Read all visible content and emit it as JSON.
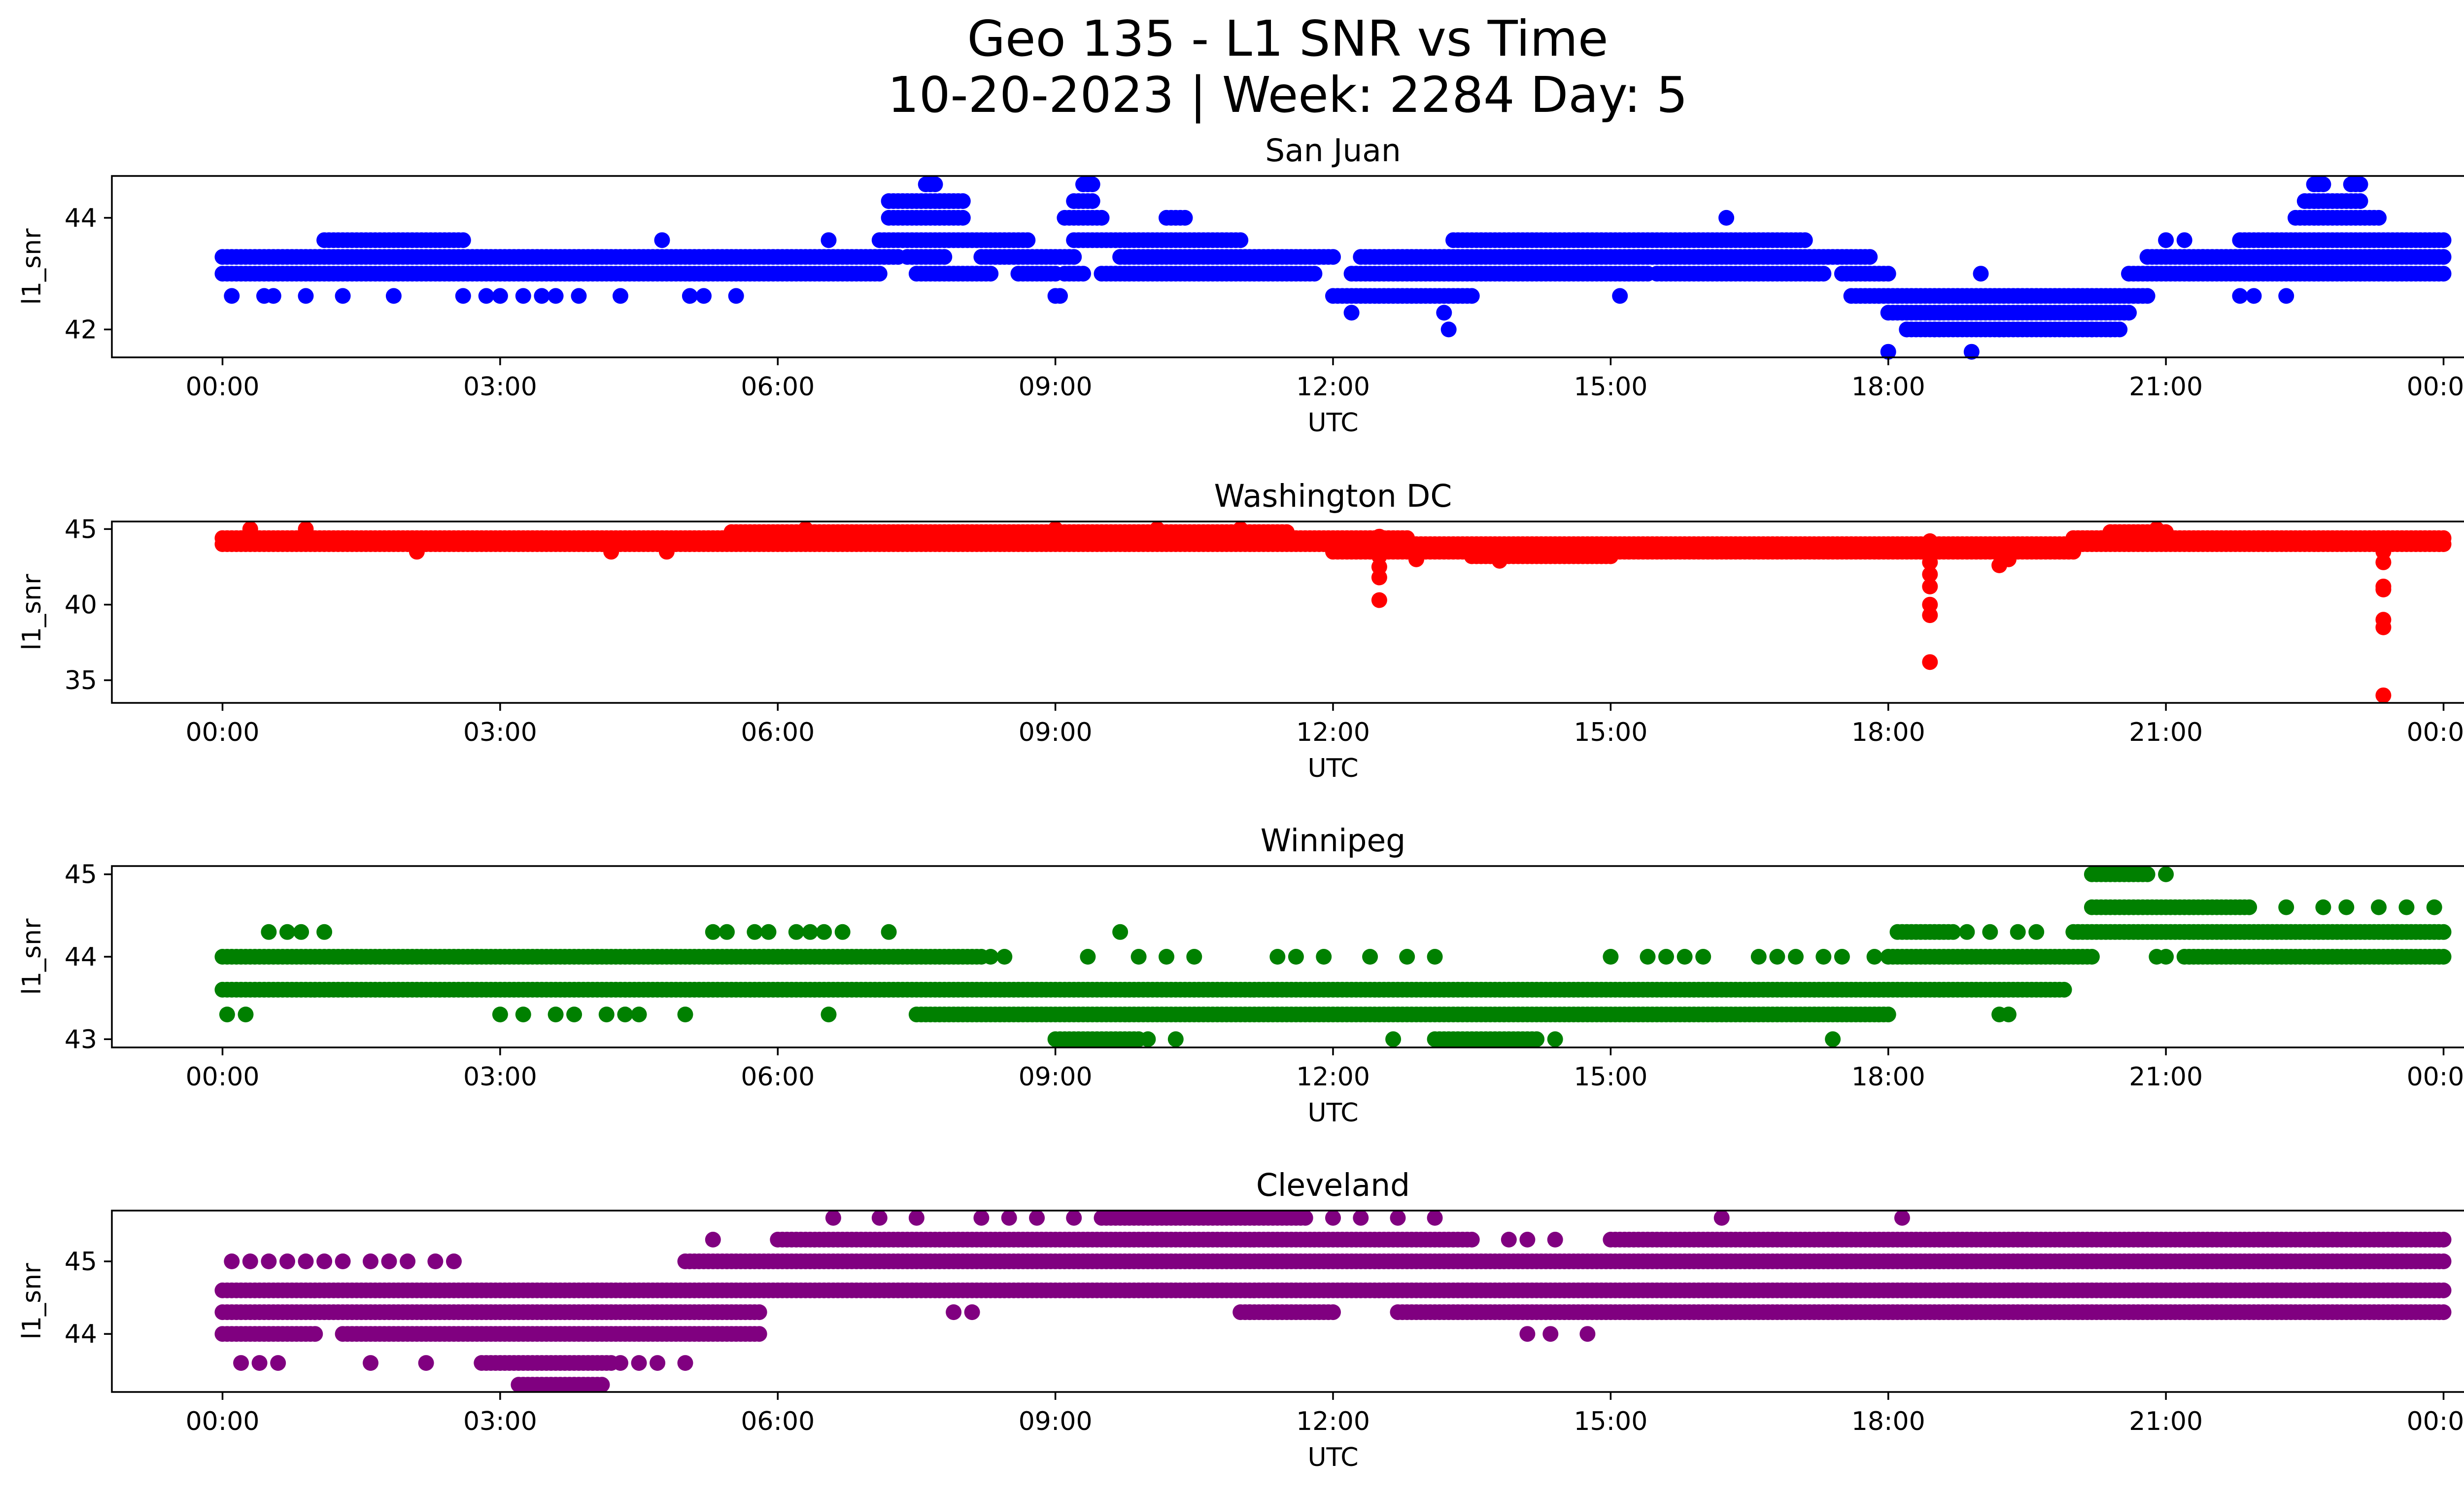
{
  "figure": {
    "title_line1": "Geo 135 - L1 SNR vs Time",
    "title_line2": "10-20-2023 | Week: 2284 Day: 5"
  },
  "chart_data": [
    {
      "type": "scatter",
      "title": "San Juan",
      "xlabel": "UTC",
      "ylabel": "l1_snr",
      "color": "#0000ff",
      "xlim": [
        "00:00",
        "24:00"
      ],
      "xticks": [
        "00:00",
        "03:00",
        "06:00",
        "09:00",
        "12:00",
        "15:00",
        "18:00",
        "21:00",
        "00:00"
      ],
      "ylim": [
        41.5,
        44.75
      ],
      "yticks": [
        42,
        44
      ],
      "levels": [
        {
          "y": 43.0,
          "ranges": [
            [
              0.0,
              7.1
            ],
            [
              7.5,
              8.3
            ],
            [
              8.6,
              9.0
            ],
            [
              9.1,
              9.3
            ],
            [
              9.5,
              11.8
            ],
            [
              12.2,
              15.4
            ],
            [
              15.5,
              17.3
            ],
            [
              17.5,
              18.0
            ],
            [
              20.6,
              24.0
            ]
          ]
        },
        {
          "y": 43.3,
          "ranges": [
            [
              0.0,
              7.3
            ],
            [
              7.4,
              7.8
            ],
            [
              8.2,
              9.2
            ],
            [
              9.7,
              12.0
            ],
            [
              12.3,
              17.8
            ],
            [
              20.8,
              24.0
            ]
          ]
        },
        {
          "y": 43.6,
          "ranges": [
            [
              1.1,
              2.6
            ],
            [
              7.1,
              8.7
            ],
            [
              9.2,
              11.0
            ],
            [
              13.3,
              17.1
            ],
            [
              21.8,
              24.0
            ]
          ]
        },
        {
          "y": 44.0,
          "ranges": [
            [
              7.2,
              8.0
            ],
            [
              9.1,
              9.5
            ],
            [
              10.2,
              10.4
            ],
            [
              22.4,
              23.3
            ]
          ]
        },
        {
          "y": 44.3,
          "ranges": [
            [
              7.2,
              8.0
            ],
            [
              9.2,
              9.4
            ],
            [
              22.5,
              23.1
            ]
          ]
        },
        {
          "y": 44.6,
          "ranges": [
            [
              7.6,
              7.7
            ],
            [
              9.3,
              9.4
            ],
            [
              22.6,
              22.7
            ],
            [
              23.0,
              23.1
            ]
          ]
        },
        {
          "y": 42.6,
          "ranges": [
            [
              12.0,
              13.5
            ],
            [
              17.6,
              20.8
            ]
          ]
        },
        {
          "y": 42.3,
          "ranges": [
            [
              18.0,
              20.6
            ]
          ]
        },
        {
          "y": 42.0,
          "ranges": [
            [
              18.2,
              20.5
            ]
          ]
        }
      ],
      "scatter_points": [
        [
          0.1,
          42.6
        ],
        [
          0.45,
          42.6
        ],
        [
          0.55,
          42.6
        ],
        [
          0.9,
          42.6
        ],
        [
          1.3,
          42.6
        ],
        [
          1.85,
          42.6
        ],
        [
          2.6,
          42.6
        ],
        [
          2.85,
          42.6
        ],
        [
          3.0,
          42.6
        ],
        [
          3.25,
          42.6
        ],
        [
          3.45,
          42.6
        ],
        [
          3.6,
          42.6
        ],
        [
          3.85,
          42.6
        ],
        [
          4.3,
          42.6
        ],
        [
          5.05,
          42.6
        ],
        [
          5.2,
          42.6
        ],
        [
          5.55,
          42.6
        ],
        [
          4.75,
          43.6
        ],
        [
          6.55,
          43.6
        ],
        [
          9.0,
          42.6
        ],
        [
          9.05,
          42.6
        ],
        [
          12.2,
          42.3
        ],
        [
          13.2,
          42.3
        ],
        [
          13.25,
          42.0
        ],
        [
          15.1,
          42.6
        ],
        [
          16.25,
          44.0
        ],
        [
          18.0,
          41.6
        ],
        [
          18.2,
          42.0
        ],
        [
          18.5,
          42.0
        ],
        [
          18.9,
          41.6
        ],
        [
          19.0,
          43.0
        ],
        [
          19.2,
          42.0
        ],
        [
          20.2,
          42.0
        ],
        [
          20.4,
          42.0
        ],
        [
          21.4,
          43.3
        ],
        [
          21.0,
          43.6
        ],
        [
          21.2,
          43.6
        ],
        [
          21.8,
          42.6
        ],
        [
          21.95,
          42.6
        ],
        [
          22.3,
          42.6
        ],
        [
          23.1,
          43.0
        ]
      ],
      "dips": []
    },
    {
      "type": "scatter",
      "title": "Washington DC",
      "xlabel": "UTC",
      "ylabel": "l1_snr",
      "color": "#ff0000",
      "xlim": [
        "00:00",
        "24:00"
      ],
      "xticks": [
        "00:00",
        "03:00",
        "06:00",
        "09:00",
        "12:00",
        "15:00",
        "18:00",
        "21:00",
        "00:00"
      ],
      "ylim": [
        33.5,
        45.5
      ],
      "yticks": [
        35,
        40,
        45
      ],
      "levels": [
        {
          "y": 44.0,
          "ranges": [
            [
              0.0,
              24.0
            ]
          ]
        },
        {
          "y": 44.4,
          "ranges": [
            [
              0.0,
              12.8
            ],
            [
              20.0,
              24.0
            ]
          ]
        },
        {
          "y": 44.8,
          "ranges": [
            [
              5.5,
              11.5
            ],
            [
              20.4,
              21.0
            ]
          ]
        },
        {
          "y": 43.5,
          "ranges": [
            [
              12.0,
              20.0
            ]
          ]
        },
        {
          "y": 43.2,
          "ranges": [
            [
              13.5,
              15.0
            ]
          ]
        }
      ],
      "scatter_points": [
        [
          0.3,
          45.0
        ],
        [
          0.9,
          45.0
        ],
        [
          2.1,
          43.5
        ],
        [
          4.2,
          43.5
        ],
        [
          4.8,
          43.5
        ],
        [
          6.3,
          45.0
        ],
        [
          9.0,
          45.0
        ],
        [
          10.1,
          45.0
        ],
        [
          11.0,
          45.0
        ],
        [
          12.9,
          43.0
        ],
        [
          13.8,
          42.9
        ],
        [
          19.2,
          42.6
        ],
        [
          19.3,
          43.0
        ],
        [
          20.9,
          45.0
        ]
      ],
      "dips": [
        {
          "x": 12.5,
          "values": [
            44.5,
            43.8,
            43.2,
            42.5,
            41.8,
            40.3
          ]
        },
        {
          "x": 18.45,
          "values": [
            44.2,
            43.5,
            42.8,
            42.0,
            41.2,
            40.0,
            39.3,
            36.2
          ]
        },
        {
          "x": 23.35,
          "values": [
            44.2,
            43.5,
            42.8,
            41.2,
            41.0,
            39.0,
            38.5,
            34.0
          ]
        }
      ]
    },
    {
      "type": "scatter",
      "title": "Winnipeg",
      "xlabel": "UTC",
      "ylabel": "l1_snr",
      "color": "#008000",
      "xlim": [
        "00:00",
        "24:00"
      ],
      "xticks": [
        "00:00",
        "03:00",
        "06:00",
        "09:00",
        "12:00",
        "15:00",
        "18:00",
        "21:00",
        "00:00"
      ],
      "ylim": [
        42.9,
        45.1
      ],
      "yticks": [
        43,
        44,
        45
      ],
      "levels": [
        {
          "y": 43.6,
          "ranges": [
            [
              0.0,
              19.9
            ]
          ]
        },
        {
          "y": 44.0,
          "ranges": [
            [
              0.0,
              8.2
            ],
            [
              18.0,
              20.2
            ],
            [
              21.2,
              24.0
            ]
          ]
        },
        {
          "y": 43.3,
          "ranges": [
            [
              7.5,
              18.0
            ]
          ]
        },
        {
          "y": 44.3,
          "ranges": [
            [
              18.1,
              18.7
            ],
            [
              20.0,
              24.0
            ]
          ]
        },
        {
          "y": 44.6,
          "ranges": [
            [
              20.2,
              21.9
            ]
          ]
        },
        {
          "y": 45.0,
          "ranges": [
            [
              20.2,
              20.8
            ]
          ]
        },
        {
          "y": 43.0,
          "ranges": [
            [
              9.0,
              9.9
            ],
            [
              13.1,
              14.2
            ]
          ]
        }
      ],
      "scatter_points": [
        [
          0.5,
          44.3
        ],
        [
          0.7,
          44.3
        ],
        [
          0.85,
          44.3
        ],
        [
          1.1,
          44.3
        ],
        [
          0.05,
          43.3
        ],
        [
          0.25,
          43.3
        ],
        [
          3.0,
          43.3
        ],
        [
          3.25,
          43.3
        ],
        [
          3.6,
          43.3
        ],
        [
          3.8,
          43.3
        ],
        [
          4.15,
          43.3
        ],
        [
          4.35,
          43.3
        ],
        [
          4.5,
          43.3
        ],
        [
          5.0,
          43.3
        ],
        [
          5.3,
          44.3
        ],
        [
          5.45,
          44.3
        ],
        [
          5.75,
          44.3
        ],
        [
          5.9,
          44.3
        ],
        [
          6.2,
          44.3
        ],
        [
          6.35,
          44.3
        ],
        [
          6.5,
          44.3
        ],
        [
          6.7,
          44.3
        ],
        [
          7.2,
          44.3
        ],
        [
          6.55,
          43.3
        ],
        [
          8.3,
          44.0
        ],
        [
          8.45,
          44.0
        ],
        [
          9.35,
          44.0
        ],
        [
          9.7,
          44.3
        ],
        [
          9.9,
          44.0
        ],
        [
          10.2,
          44.0
        ],
        [
          10.5,
          44.0
        ],
        [
          11.4,
          44.0
        ],
        [
          11.6,
          44.0
        ],
        [
          11.9,
          44.0
        ],
        [
          12.4,
          44.0
        ],
        [
          12.8,
          44.0
        ],
        [
          13.1,
          44.0
        ],
        [
          10.0,
          43.0
        ],
        [
          10.3,
          43.0
        ],
        [
          12.65,
          43.0
        ],
        [
          14.4,
          43.0
        ],
        [
          15.0,
          44.0
        ],
        [
          15.4,
          44.0
        ],
        [
          15.6,
          44.0
        ],
        [
          15.8,
          44.0
        ],
        [
          16.0,
          44.0
        ],
        [
          16.6,
          44.0
        ],
        [
          16.8,
          44.0
        ],
        [
          17.0,
          44.0
        ],
        [
          17.3,
          44.0
        ],
        [
          17.5,
          44.0
        ],
        [
          17.85,
          44.0
        ],
        [
          17.4,
          43.0
        ],
        [
          19.2,
          43.3
        ],
        [
          19.3,
          43.3
        ],
        [
          18.85,
          44.3
        ],
        [
          19.1,
          44.3
        ],
        [
          19.4,
          44.3
        ],
        [
          19.6,
          44.3
        ],
        [
          21.0,
          45.0
        ],
        [
          22.3,
          44.6
        ],
        [
          22.7,
          44.6
        ],
        [
          22.95,
          44.6
        ],
        [
          23.3,
          44.6
        ],
        [
          23.6,
          44.6
        ],
        [
          23.9,
          44.6
        ],
        [
          20.9,
          44.0
        ],
        [
          21.0,
          44.0
        ]
      ],
      "dips": []
    },
    {
      "type": "scatter",
      "title": "Cleveland",
      "xlabel": "UTC",
      "ylabel": "l1_snr",
      "color": "#800080",
      "xlim": [
        "00:00",
        "24:00"
      ],
      "xticks": [
        "00:00",
        "03:00",
        "06:00",
        "09:00",
        "12:00",
        "15:00",
        "18:00",
        "21:00",
        "00:00"
      ],
      "ylim": [
        43.2,
        45.7
      ],
      "yticks": [
        44,
        45
      ],
      "levels": [
        {
          "y": 44.6,
          "ranges": [
            [
              0.0,
              24.0
            ]
          ]
        },
        {
          "y": 44.3,
          "ranges": [
            [
              0.0,
              5.8
            ],
            [
              11.0,
              12.0
            ],
            [
              12.7,
              24.0
            ]
          ]
        },
        {
          "y": 44.0,
          "ranges": [
            [
              0.0,
              1.0
            ],
            [
              1.3,
              5.8
            ]
          ]
        },
        {
          "y": 45.0,
          "ranges": [
            [
              5.0,
              24.0
            ]
          ]
        },
        {
          "y": 45.3,
          "ranges": [
            [
              6.0,
              13.5
            ],
            [
              15.0,
              24.0
            ]
          ]
        },
        {
          "y": 45.6,
          "ranges": [
            [
              9.5,
              11.7
            ]
          ]
        },
        {
          "y": 43.6,
          "ranges": [
            [
              2.8,
              4.2
            ]
          ]
        },
        {
          "y": 43.3,
          "ranges": [
            [
              3.2,
              4.1
            ]
          ]
        }
      ],
      "scatter_points": [
        [
          0.1,
          45.0
        ],
        [
          0.3,
          45.0
        ],
        [
          0.5,
          45.0
        ],
        [
          0.7,
          45.0
        ],
        [
          0.9,
          45.0
        ],
        [
          1.1,
          45.0
        ],
        [
          1.3,
          45.0
        ],
        [
          1.6,
          45.0
        ],
        [
          1.8,
          45.0
        ],
        [
          2.0,
          45.0
        ],
        [
          2.3,
          45.0
        ],
        [
          2.5,
          45.0
        ],
        [
          0.2,
          43.6
        ],
        [
          0.4,
          43.6
        ],
        [
          0.6,
          43.6
        ],
        [
          1.6,
          43.6
        ],
        [
          2.2,
          43.6
        ],
        [
          4.3,
          43.6
        ],
        [
          4.5,
          43.6
        ],
        [
          4.7,
          43.6
        ],
        [
          5.0,
          43.6
        ],
        [
          5.3,
          45.3
        ],
        [
          6.6,
          45.6
        ],
        [
          7.1,
          45.6
        ],
        [
          7.5,
          45.6
        ],
        [
          8.2,
          45.6
        ],
        [
          8.5,
          45.6
        ],
        [
          8.8,
          45.6
        ],
        [
          9.2,
          45.6
        ],
        [
          12.0,
          45.6
        ],
        [
          12.3,
          45.6
        ],
        [
          12.7,
          45.6
        ],
        [
          13.1,
          45.6
        ],
        [
          14.1,
          44.0
        ],
        [
          14.35,
          44.0
        ],
        [
          14.75,
          44.0
        ],
        [
          13.9,
          45.3
        ],
        [
          14.1,
          45.3
        ],
        [
          14.4,
          45.3
        ],
        [
          16.2,
          45.6
        ],
        [
          18.15,
          45.6
        ],
        [
          11.1,
          44.3
        ],
        [
          7.9,
          44.3
        ],
        [
          8.1,
          44.3
        ]
      ],
      "dips": []
    }
  ]
}
